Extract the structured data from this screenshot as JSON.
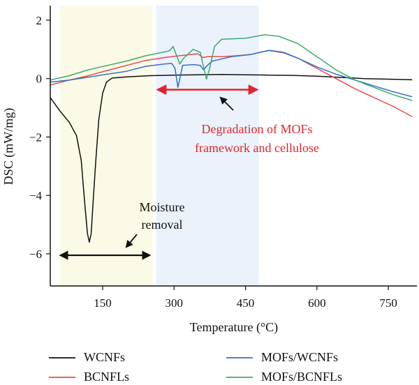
{
  "chart_data": {
    "type": "line",
    "xlabel": "Temperature (°C)",
    "ylabel": "DSC (mW/mg)",
    "xlim": [
      40,
      810
    ],
    "ylim": [
      -7.1,
      2.5
    ],
    "xticks": [
      150,
      300,
      450,
      600,
      750
    ],
    "yticks": [
      2,
      0,
      -2,
      -4,
      -6
    ],
    "ytick_labels": [
      "2",
      "0",
      "−2",
      "−4",
      "−6"
    ],
    "grid": false,
    "legend_position": "bottom",
    "shaded_regions": [
      {
        "x": [
          60,
          255
        ],
        "color": "#fbfae6"
      },
      {
        "x": [
          262,
          478
        ],
        "color": "#ebf2fc"
      }
    ],
    "annotations": {
      "degradation": {
        "lines": [
          "Degradation of MOFs",
          "framework and cellulose"
        ],
        "color": "#e0262a",
        "arrow_x": [
          262,
          478
        ],
        "arrow_y": -0.38
      },
      "moisture": {
        "lines": [
          "Moisture",
          "removal"
        ],
        "color": "#111111",
        "arrow_x": [
          62,
          248
        ],
        "arrow_y": -6.05
      }
    },
    "series": [
      {
        "name": "WCNFs",
        "color": "#111111",
        "points": [
          [
            40,
            -0.65
          ],
          [
            60,
            -1.1
          ],
          [
            80,
            -1.5
          ],
          [
            95,
            -1.95
          ],
          [
            105,
            -2.8
          ],
          [
            112,
            -4.2
          ],
          [
            118,
            -5.3
          ],
          [
            122,
            -5.6
          ],
          [
            126,
            -5.3
          ],
          [
            130,
            -4.2
          ],
          [
            136,
            -2.7
          ],
          [
            142,
            -1.4
          ],
          [
            150,
            -0.5
          ],
          [
            158,
            -0.12
          ],
          [
            170,
            0.02
          ],
          [
            200,
            0.06
          ],
          [
            250,
            0.1
          ],
          [
            300,
            0.12
          ],
          [
            350,
            0.13
          ],
          [
            400,
            0.14
          ],
          [
            450,
            0.13
          ],
          [
            500,
            0.12
          ],
          [
            550,
            0.11
          ],
          [
            600,
            0.08
          ],
          [
            650,
            0.04
          ],
          [
            700,
            0.0
          ],
          [
            750,
            -0.02
          ],
          [
            800,
            -0.04
          ]
        ]
      },
      {
        "name": "BCNFLs",
        "color": "#e84a4a",
        "points": [
          [
            40,
            -0.22
          ],
          [
            80,
            -0.05
          ],
          [
            120,
            0.1
          ],
          [
            160,
            0.28
          ],
          [
            200,
            0.45
          ],
          [
            240,
            0.62
          ],
          [
            280,
            0.72
          ],
          [
            320,
            0.8
          ],
          [
            350,
            0.85
          ],
          [
            360,
            0.72
          ],
          [
            370,
            0.75
          ],
          [
            400,
            0.75
          ],
          [
            430,
            0.78
          ],
          [
            460,
            0.82
          ],
          [
            480,
            0.9
          ],
          [
            500,
            0.96
          ],
          [
            530,
            0.88
          ],
          [
            560,
            0.7
          ],
          [
            600,
            0.35
          ],
          [
            640,
            0.0
          ],
          [
            680,
            -0.35
          ],
          [
            720,
            -0.65
          ],
          [
            760,
            -0.95
          ],
          [
            800,
            -1.3
          ]
        ]
      },
      {
        "name": "MOFs/WCNFs",
        "color": "#2f72c4",
        "points": [
          [
            40,
            -0.12
          ],
          [
            80,
            -0.05
          ],
          [
            120,
            0.05
          ],
          [
            160,
            0.15
          ],
          [
            200,
            0.25
          ],
          [
            240,
            0.42
          ],
          [
            280,
            0.5
          ],
          [
            295,
            0.52
          ],
          [
            302,
            0.35
          ],
          [
            308,
            -0.3
          ],
          [
            312,
            0.0
          ],
          [
            318,
            0.45
          ],
          [
            340,
            0.48
          ],
          [
            355,
            0.45
          ],
          [
            362,
            0.3
          ],
          [
            368,
            0.42
          ],
          [
            380,
            0.6
          ],
          [
            420,
            0.75
          ],
          [
            460,
            0.82
          ],
          [
            500,
            0.97
          ],
          [
            530,
            0.9
          ],
          [
            560,
            0.7
          ],
          [
            600,
            0.4
          ],
          [
            640,
            0.15
          ],
          [
            680,
            -0.05
          ],
          [
            720,
            -0.25
          ],
          [
            760,
            -0.45
          ],
          [
            800,
            -0.62
          ]
        ]
      },
      {
        "name": "MOFs/BCNFLs",
        "color": "#3aab6a",
        "points": [
          [
            40,
            -0.05
          ],
          [
            80,
            0.1
          ],
          [
            120,
            0.3
          ],
          [
            160,
            0.45
          ],
          [
            200,
            0.6
          ],
          [
            240,
            0.78
          ],
          [
            270,
            0.88
          ],
          [
            290,
            0.95
          ],
          [
            298,
            1.1
          ],
          [
            305,
            0.8
          ],
          [
            312,
            0.5
          ],
          [
            320,
            0.7
          ],
          [
            340,
            1.0
          ],
          [
            355,
            0.9
          ],
          [
            362,
            0.4
          ],
          [
            368,
            -0.02
          ],
          [
            374,
            0.3
          ],
          [
            385,
            1.1
          ],
          [
            400,
            1.35
          ],
          [
            450,
            1.38
          ],
          [
            490,
            1.5
          ],
          [
            520,
            1.45
          ],
          [
            560,
            1.2
          ],
          [
            600,
            0.75
          ],
          [
            640,
            0.3
          ],
          [
            680,
            -0.05
          ],
          [
            720,
            -0.3
          ],
          [
            760,
            -0.55
          ],
          [
            800,
            -0.75
          ]
        ]
      }
    ]
  },
  "legend": [
    {
      "label": "WCNFs",
      "color": "#111111"
    },
    {
      "label": "BCNFLs",
      "color": "#e84a4a"
    },
    {
      "label": "MOFs/WCNFs",
      "color": "#2f72c4"
    },
    {
      "label": "MOFs/BCNFLs",
      "color": "#3aab6a"
    }
  ]
}
